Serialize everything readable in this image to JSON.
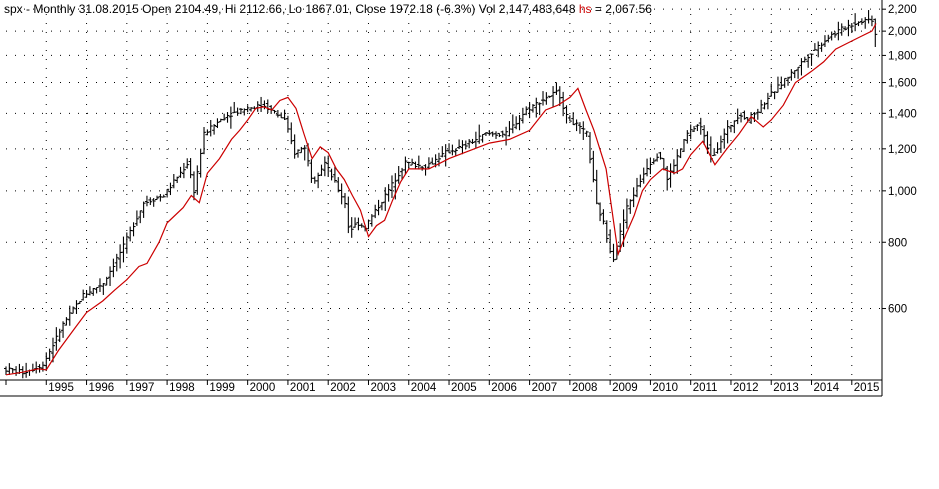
{
  "header": {
    "prefix": "spx - Monthly 31.08.2015 Open 2104.49, Hi 2112.66, Lo 1867.01, Close 1972.18 (-6.3%) Vol 2,147,483,648",
    "hs_label": "hs",
    "hs_value": "= 2,067.56"
  },
  "colors": {
    "price_bars": "#000000",
    "hs_line": "#cc0000",
    "grid": "#000000",
    "background": "#ffffff"
  },
  "chart_data": {
    "type": "line",
    "title": "spx - Monthly 31.08.2015",
    "ylabel": "",
    "xlabel": "",
    "y_scale": "log",
    "ylim": [
      440,
      2250
    ],
    "xlim": [
      1994.0,
      2015.75
    ],
    "grid": true,
    "y_ticks": [
      {
        "value": 2200,
        "label": "2,200"
      },
      {
        "value": 2000,
        "label": "2,000"
      },
      {
        "value": 1800,
        "label": "1,800"
      },
      {
        "value": 1600,
        "label": "1,600"
      },
      {
        "value": 1400,
        "label": "1,400"
      },
      {
        "value": 1200,
        "label": "1,200"
      },
      {
        "value": 1000,
        "label": "1,000"
      },
      {
        "value": 800,
        "label": "800"
      },
      {
        "value": 600,
        "label": "600"
      }
    ],
    "x_ticks": [
      {
        "value": 1995,
        "label": "1995"
      },
      {
        "value": 1996,
        "label": "1996"
      },
      {
        "value": 1997,
        "label": "1997"
      },
      {
        "value": 1998,
        "label": "1998"
      },
      {
        "value": 1999,
        "label": "1999"
      },
      {
        "value": 2000,
        "label": "2000"
      },
      {
        "value": 2001,
        "label": "2001"
      },
      {
        "value": 2002,
        "label": "2002"
      },
      {
        "value": 2003,
        "label": "2003"
      },
      {
        "value": 2004,
        "label": "2004"
      },
      {
        "value": 2005,
        "label": "2005"
      },
      {
        "value": 2006,
        "label": "2006"
      },
      {
        "value": 2007,
        "label": "2007"
      },
      {
        "value": 2008,
        "label": "2008"
      },
      {
        "value": 2009,
        "label": "2009"
      },
      {
        "value": 2010,
        "label": "2010"
      },
      {
        "value": 2011,
        "label": "2011"
      },
      {
        "value": 2012,
        "label": "2012"
      },
      {
        "value": 2013,
        "label": "2013"
      },
      {
        "value": 2014,
        "label": "2014"
      },
      {
        "value": 2015,
        "label": "2015"
      }
    ],
    "price_anchors": [
      [
        1994.0,
        462
      ],
      [
        1994.5,
        455
      ],
      [
        1995.0,
        470
      ],
      [
        1995.5,
        560
      ],
      [
        1996.0,
        636
      ],
      [
        1996.5,
        670
      ],
      [
        1997.0,
        786
      ],
      [
        1997.5,
        950
      ],
      [
        1998.0,
        980
      ],
      [
        1998.6,
        1130
      ],
      [
        1998.75,
        1000
      ],
      [
        1999.0,
        1280
      ],
      [
        1999.5,
        1380
      ],
      [
        2000.0,
        1430
      ],
      [
        2000.5,
        1450
      ],
      [
        2001.0,
        1360
      ],
      [
        2001.25,
        1180
      ],
      [
        2001.5,
        1210
      ],
      [
        2001.7,
        1040
      ],
      [
        2002.0,
        1130
      ],
      [
        2002.5,
        950
      ],
      [
        2002.6,
        840
      ],
      [
        2002.8,
        870
      ],
      [
        2003.0,
        855
      ],
      [
        2003.5,
        980
      ],
      [
        2004.0,
        1130
      ],
      [
        2004.5,
        1110
      ],
      [
        2005.0,
        1180
      ],
      [
        2005.5,
        1220
      ],
      [
        2006.0,
        1280
      ],
      [
        2006.5,
        1280
      ],
      [
        2007.0,
        1420
      ],
      [
        2007.5,
        1500
      ],
      [
        2007.8,
        1540
      ],
      [
        2008.0,
        1380
      ],
      [
        2008.5,
        1280
      ],
      [
        2008.75,
        940
      ],
      [
        2008.9,
        880
      ],
      [
        2009.15,
        740
      ],
      [
        2009.5,
        930
      ],
      [
        2010.0,
        1110
      ],
      [
        2010.3,
        1180
      ],
      [
        2010.5,
        1050
      ],
      [
        2011.0,
        1280
      ],
      [
        2011.3,
        1340
      ],
      [
        2011.6,
        1150
      ],
      [
        2011.8,
        1230
      ],
      [
        2012.0,
        1310
      ],
      [
        2012.3,
        1400
      ],
      [
        2012.5,
        1360
      ],
      [
        2012.8,
        1430
      ],
      [
        2013.0,
        1500
      ],
      [
        2013.5,
        1640
      ],
      [
        2014.0,
        1800
      ],
      [
        2014.5,
        1950
      ],
      [
        2015.0,
        2050
      ],
      [
        2015.4,
        2100
      ],
      [
        2015.58,
        2104
      ]
    ],
    "last_bar": {
      "date": "31.08.2015",
      "open": 2104.49,
      "high": 2112.66,
      "low": 1867.01,
      "close": 1972.18
    },
    "series": [
      {
        "name": "hs",
        "x": [
          1994.0,
          1994.4,
          1994.8,
          1995.0,
          1995.3,
          1995.7,
          1996.0,
          1996.4,
          1996.7,
          1997.0,
          1997.3,
          1997.5,
          1997.8,
          1998.0,
          1998.4,
          1998.6,
          1998.8,
          1999.0,
          1999.3,
          1999.6,
          1999.8,
          2000.0,
          2000.2,
          2000.4,
          2000.6,
          2000.8,
          2001.0,
          2001.2,
          2001.4,
          2001.6,
          2001.8,
          2002.0,
          2002.2,
          2002.4,
          2002.6,
          2002.8,
          2003.0,
          2003.2,
          2003.4,
          2003.6,
          2003.8,
          2004.0,
          2004.5,
          2005.0,
          2005.5,
          2006.0,
          2006.5,
          2007.0,
          2007.4,
          2007.7,
          2008.0,
          2008.2,
          2008.4,
          2008.6,
          2008.9,
          2009.2,
          2009.4,
          2009.6,
          2009.8,
          2010.0,
          2010.3,
          2010.6,
          2010.8,
          2011.0,
          2011.3,
          2011.6,
          2011.9,
          2012.2,
          2012.5,
          2012.8,
          2013.0,
          2013.3,
          2013.6,
          2014.0,
          2014.3,
          2014.6,
          2014.9,
          2015.2,
          2015.5,
          2015.6
        ],
        "values": [
          450,
          455,
          462,
          460,
          500,
          550,
          590,
          620,
          650,
          680,
          720,
          730,
          800,
          870,
          930,
          980,
          950,
          1080,
          1150,
          1250,
          1300,
          1360,
          1430,
          1440,
          1420,
          1480,
          1500,
          1430,
          1280,
          1150,
          1210,
          1180,
          1100,
          1050,
          980,
          920,
          820,
          860,
          880,
          960,
          1040,
          1100,
          1100,
          1150,
          1190,
          1230,
          1250,
          1300,
          1420,
          1450,
          1500,
          1560,
          1420,
          1300,
          1100,
          760,
          830,
          900,
          1000,
          1050,
          1100,
          1080,
          1100,
          1170,
          1240,
          1120,
          1200,
          1280,
          1380,
          1320,
          1360,
          1450,
          1600,
          1680,
          1750,
          1850,
          1900,
          1950,
          2000,
          2067.56
        ]
      }
    ]
  }
}
